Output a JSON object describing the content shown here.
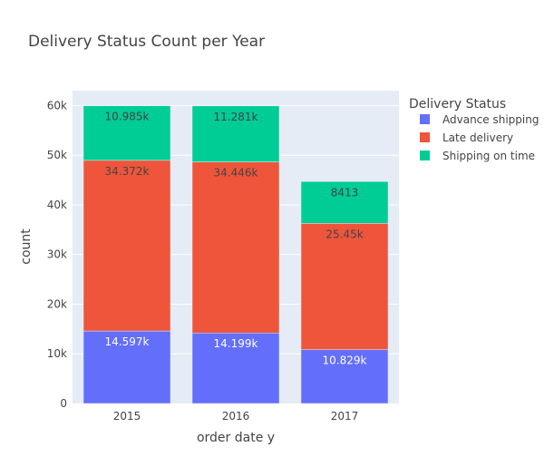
{
  "chart_data": {
    "type": "bar",
    "stacked": true,
    "title": "Delivery Status Count per Year",
    "xlabel": "order date y",
    "ylabel": "count",
    "categories": [
      "2015",
      "2016",
      "2017"
    ],
    "ylim": [
      0,
      63000
    ],
    "yticks": [
      0,
      10000,
      20000,
      30000,
      40000,
      50000,
      60000
    ],
    "ytick_labels": [
      "0",
      "10k",
      "20k",
      "30k",
      "40k",
      "50k",
      "60k"
    ],
    "legend_title": "Delivery Status",
    "legend_position": "right",
    "grid": true,
    "series": [
      {
        "name": "Advance shipping",
        "color": "#636efa",
        "label_color": "#ffffff",
        "values": [
          14597,
          14199,
          10829
        ],
        "labels": [
          "14.597k",
          "14.199k",
          "10.829k"
        ]
      },
      {
        "name": "Late delivery",
        "color": "#ef553b",
        "label_color": "#444444",
        "values": [
          34372,
          34446,
          25450
        ],
        "labels": [
          "34.372k",
          "34.446k",
          "25.45k"
        ]
      },
      {
        "name": "Shipping on time",
        "color": "#00cc96",
        "label_color": "#444444",
        "values": [
          10985,
          11281,
          8413
        ],
        "labels": [
          "10.985k",
          "11.281k",
          "8413"
        ]
      }
    ],
    "plot_background": "#e5ecf6",
    "grid_color": "#ffffff"
  }
}
